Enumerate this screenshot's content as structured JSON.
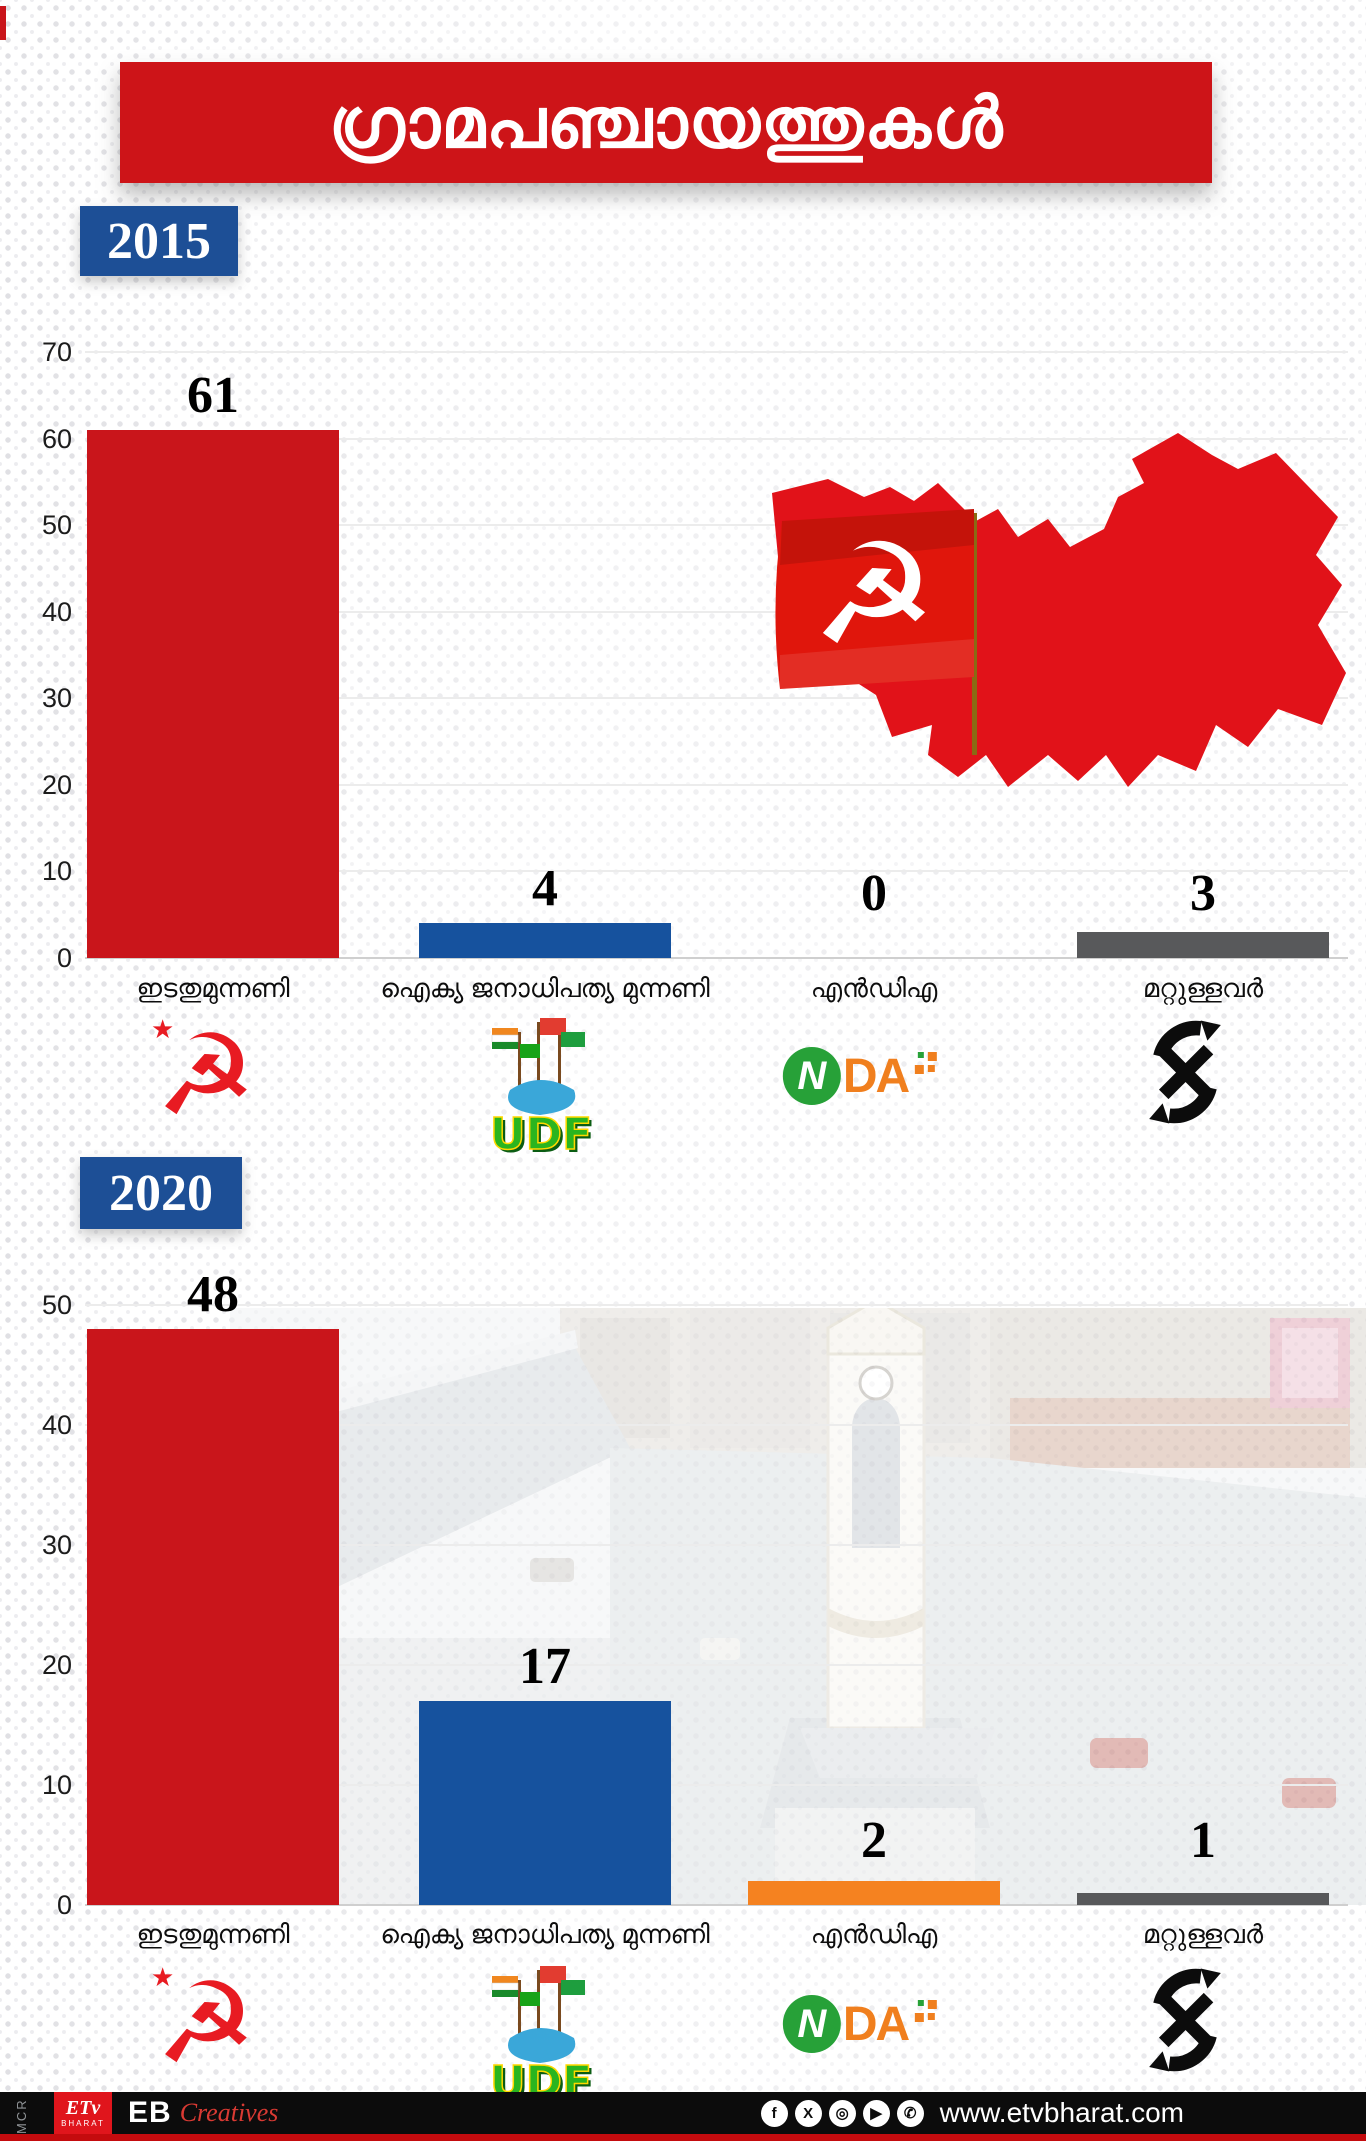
{
  "title": "ഗ്രാമപഞ്ചായത്തുകൾ",
  "chart_data": [
    {
      "type": "bar",
      "title": "2015",
      "categories": [
        "ഇടതുമുന്നണി",
        "ഐക്യ ജനാധിപത്യ മുന്നണി",
        "എൻഡിഎ",
        "മറ്റുള്ളവർ"
      ],
      "values": [
        61,
        4,
        0,
        3
      ],
      "bar_colors": [
        "#c9151b",
        "#16529e",
        "#f58220",
        "#58595b"
      ],
      "ylim": [
        0,
        70
      ],
      "yticks": [
        0,
        10,
        20,
        30,
        40,
        50,
        60,
        70
      ],
      "grid": true,
      "legend_position": "bottom",
      "legend_icons": [
        "ldf-hammer-sickle-icon",
        "udf-logo-icon",
        "nda-logo-icon",
        "others-symbol-icon"
      ]
    },
    {
      "type": "bar",
      "title": "2020",
      "categories": [
        "ഇടതുമുന്നണി",
        "ഐക്യ ജനാധിപത്യ മുന്നണി",
        "എൻഡിഎ",
        "മറ്റുള്ളവർ"
      ],
      "values": [
        48,
        17,
        2,
        1
      ],
      "bar_colors": [
        "#c9151b",
        "#16529e",
        "#f58220",
        "#58595b"
      ],
      "ylim": [
        0,
        50
      ],
      "yticks": [
        0,
        10,
        20,
        30,
        40,
        50
      ],
      "grid": true,
      "legend_position": "bottom",
      "legend_icons": [
        "ldf-hammer-sickle-icon",
        "udf-logo-icon",
        "nda-logo-icon",
        "others-symbol-icon"
      ]
    }
  ],
  "icons": {
    "udf": "UDF",
    "nda_n": "N",
    "nda_da": "DA"
  },
  "colors": {
    "banner_red": "#cd1418",
    "year_chip_blue": "#1d4f96",
    "ldf_red": "#c9151b",
    "udf_blue": "#16529e",
    "nda_orange": "#f58220",
    "others_gray": "#58595b"
  },
  "footer": {
    "mcr": "MCR",
    "etv_logo_text": "ETv",
    "etv_logo_sub": "BHARAT",
    "brand_left": "EB",
    "brand_right": "Creatives",
    "social_icons": [
      "facebook-icon",
      "x-icon",
      "instagram-icon",
      "youtube-icon",
      "whatsapp-icon"
    ],
    "website": "www.etvbharat.com"
  }
}
